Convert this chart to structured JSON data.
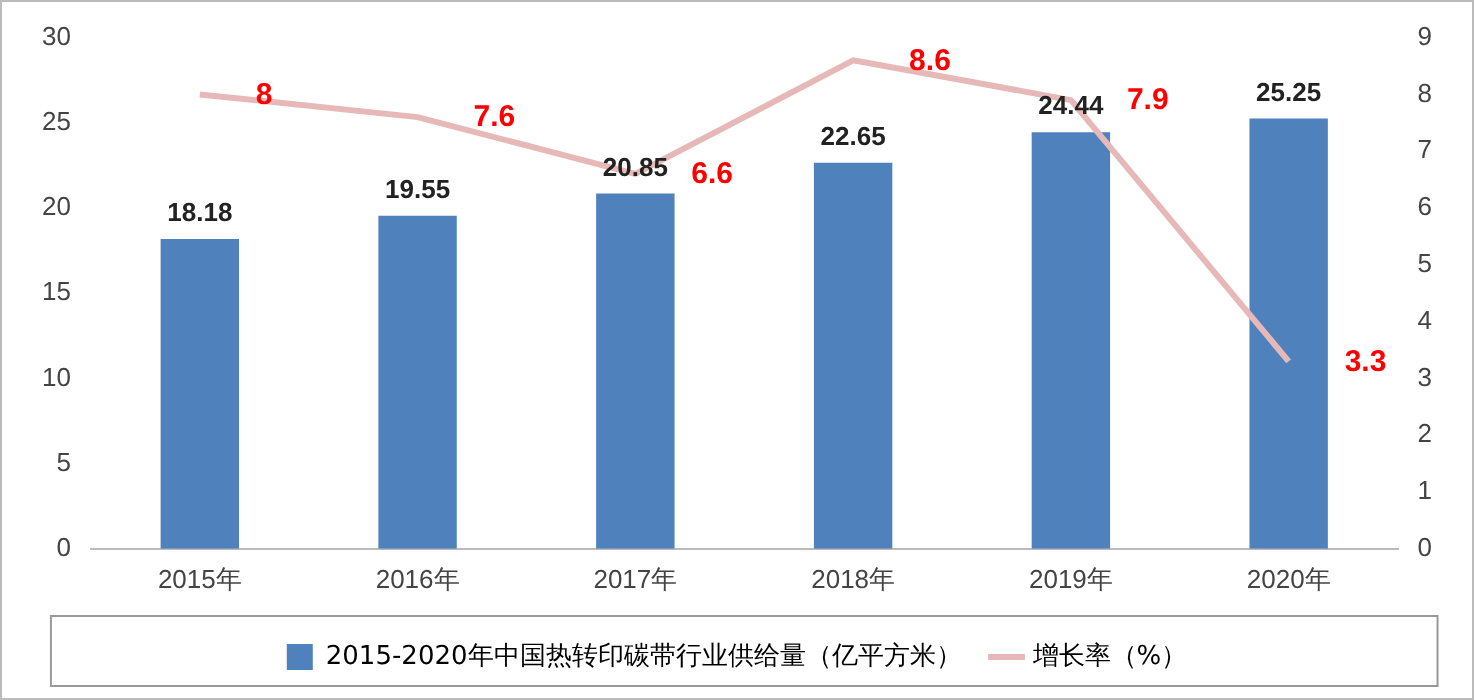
{
  "chart_data": {
    "type": "bar",
    "categories": [
      "2015年",
      "2016年",
      "2017年",
      "2018年",
      "2019年",
      "2020年"
    ],
    "series": [
      {
        "name": "2015-2020年中国热转印碳带行业供给量（亿平方米）",
        "color": "#4f81bd",
        "values": [
          18.18,
          19.55,
          20.85,
          22.65,
          24.44,
          25.25
        ]
      },
      {
        "name": "增长率（%）",
        "type": "line",
        "axis": "y2",
        "color": "#e6b9b8",
        "values": [
          8,
          7.6,
          6.6,
          8.6,
          7.9,
          3.3
        ]
      }
    ],
    "ylim": [
      0,
      30
    ],
    "yticks": [
      0,
      5,
      10,
      15,
      20,
      25,
      30
    ],
    "y2lim": [
      0,
      9
    ],
    "y2ticks": [
      0,
      1,
      2,
      3,
      4,
      5,
      6,
      7,
      8,
      9
    ],
    "data_labels": true,
    "legend": "bottom",
    "grid": false,
    "marker": "none",
    "line_style": "solid"
  }
}
